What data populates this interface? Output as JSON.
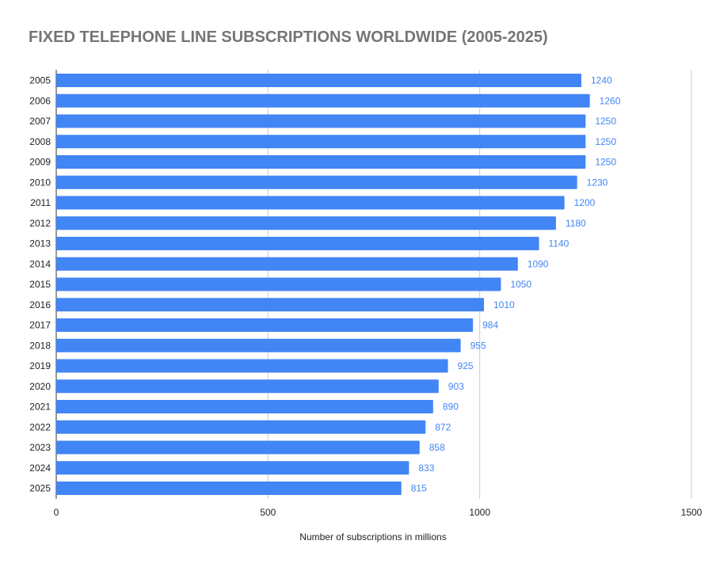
{
  "chart_data": {
    "type": "bar",
    "orientation": "horizontal",
    "title": "FIXED TELEPHONE LINE SUBSCRIPTIONS WORLDWIDE (2005-2025)",
    "xlabel": "Number of subscriptions in millions",
    "ylabel": "",
    "categories": [
      "2005",
      "2006",
      "2007",
      "2008",
      "2009",
      "2010",
      "2011",
      "2012",
      "2013",
      "2014",
      "2015",
      "2016",
      "2017",
      "2018",
      "2019",
      "2020",
      "2021",
      "2022",
      "2023",
      "2024",
      "2025"
    ],
    "series": [
      {
        "values": [
          1240,
          1260,
          1250,
          1250,
          1250,
          1230,
          1200,
          1180,
          1140,
          1090,
          1050,
          1010,
          984,
          955,
          925,
          903,
          890,
          872,
          858,
          833,
          815
        ]
      }
    ],
    "xlim": [
      0,
      1500
    ],
    "xticks": [
      0,
      500,
      1000,
      1500
    ],
    "grid": true,
    "data_labels": true,
    "colors": {
      "bar": "#4285f4",
      "label": "#4285f4",
      "grid": "#cccccc",
      "title": "#757575"
    }
  }
}
